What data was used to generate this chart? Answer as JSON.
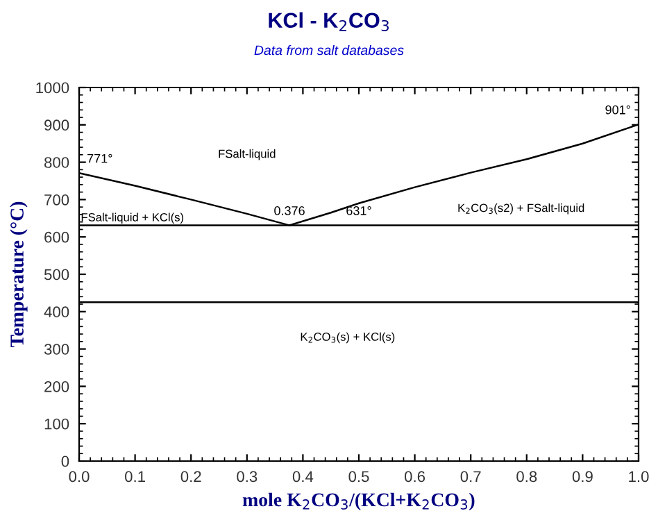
{
  "chart_data": {
    "type": "line",
    "title": "KCl - K$_{2}$CO$_{3}$",
    "subtitle": "Data from salt databases",
    "xlabel": "mole K$_{2}$CO$_{3}$/(KCl+K$_{2}$CO$_{3}$)",
    "ylabel": "Temperature (°C)",
    "series": [
      {
        "color": "#000000",
        "x": [
          0,
          0.1,
          0.2,
          0.3,
          0.376
        ],
        "values": [
          771,
          737,
          700,
          662,
          631
        ]
      },
      {
        "color": "#000000",
        "x": [
          0.376,
          0.45,
          0.5,
          0.6,
          0.7,
          0.8,
          0.9,
          1.0
        ],
        "values": [
          631,
          665,
          690,
          733,
          772,
          808,
          850,
          901
        ]
      },
      {
        "color": "#000000",
        "x": [
          0,
          1
        ],
        "values": [
          631,
          631
        ]
      },
      {
        "color": "#000000",
        "x": [
          0,
          1
        ],
        "values": [
          425,
          425
        ]
      }
    ],
    "annotations": [
      {
        "text": "771°",
        "x": 0,
        "y": 771
      },
      {
        "text": "901°",
        "x": 1.0,
        "y": 901
      },
      {
        "text": "0.376",
        "x": 0.376,
        "y": 631
      },
      {
        "text": "631°",
        "x": 0.5,
        "y": 631
      },
      "FSalt-liquid",
      "FSalt-liquid + KCl(s)",
      "K$_{2}$CO$_{3}$(s2) + FSalt-liquid",
      "K$_{2}$CO$_{3}$(s) + KCl(s)"
    ],
    "xlim": [
      0,
      1
    ],
    "ylim": [
      0,
      1000
    ],
    "xticks": [
      {
        "value": 0,
        "label": "0.0"
      },
      {
        "value": 0.1,
        "label": "0.1"
      },
      {
        "value": 0.2,
        "label": "0.2"
      },
      {
        "value": 0.3,
        "label": "0.3"
      },
      {
        "value": 0.4,
        "label": "0.4"
      },
      {
        "value": 0.5,
        "label": "0.5"
      },
      {
        "value": 0.6,
        "label": "0.6"
      },
      {
        "value": 0.7,
        "label": "0.7"
      },
      {
        "value": 0.8,
        "label": "0.8"
      },
      {
        "value": 0.9,
        "label": "0.9"
      },
      {
        "value": 1,
        "label": "1.0"
      }
    ],
    "yticks": [
      0,
      100,
      200,
      300,
      400,
      500,
      600,
      700,
      800,
      900,
      1000
    ],
    "grid": false,
    "legend": false,
    "marker": "none",
    "line_style": "solid"
  }
}
